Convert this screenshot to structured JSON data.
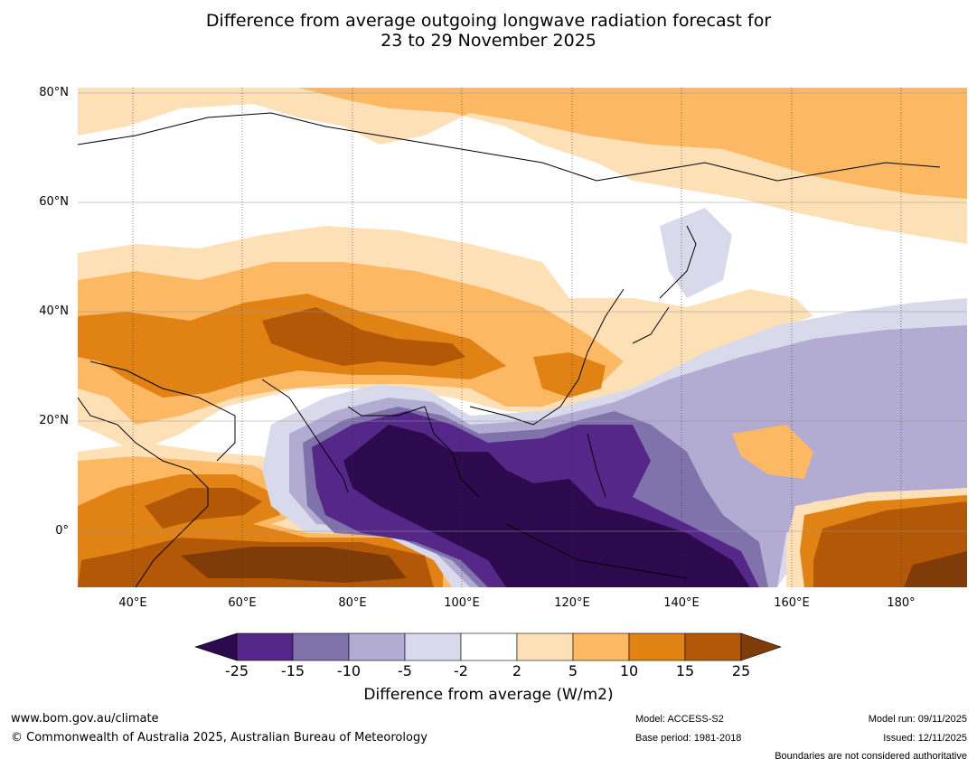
{
  "title_line1": "Difference from average outgoing longwave radiation forecast for",
  "title_line2": "23 to 29 November 2025",
  "lat_labels": [
    "80°N",
    "60°N",
    "40°N",
    "20°N",
    "0°"
  ],
  "lon_labels": [
    "40°E",
    "60°E",
    "80°E",
    "100°E",
    "120°E",
    "140°E",
    "160°E",
    "180°"
  ],
  "colorbar": {
    "ticks": [
      "-25",
      "-15",
      "-10",
      "-5",
      "-2",
      "2",
      "5",
      "10",
      "15",
      "25"
    ],
    "label": "Difference from average (W/m2)",
    "colors": {
      "below_-25": "#2d0a4e",
      "-25_-15": "#542788",
      "-15_-10": "#8073ac",
      "-10_-5": "#b2abd2",
      "-5_-2": "#d8daeb",
      "-2_2": "#ffffff",
      "2_5": "#fee0b6",
      "5_10": "#fdb863",
      "10_15": "#e08214",
      "15_25": "#b35806",
      "above_25": "#7f3b08"
    }
  },
  "footer": {
    "website": "www.bom.gov.au/climate",
    "copyright": "© Commonwealth of Australia 2025, Australian Bureau of Meteorology",
    "model": "Model: ACCESS-S2",
    "base_period": "Base period: 1981-2018",
    "model_run": "Model run: 09/11/2025",
    "issued": "Issued: 12/11/2025",
    "disclaimer": "Boundaries are not considered authoritative"
  }
}
